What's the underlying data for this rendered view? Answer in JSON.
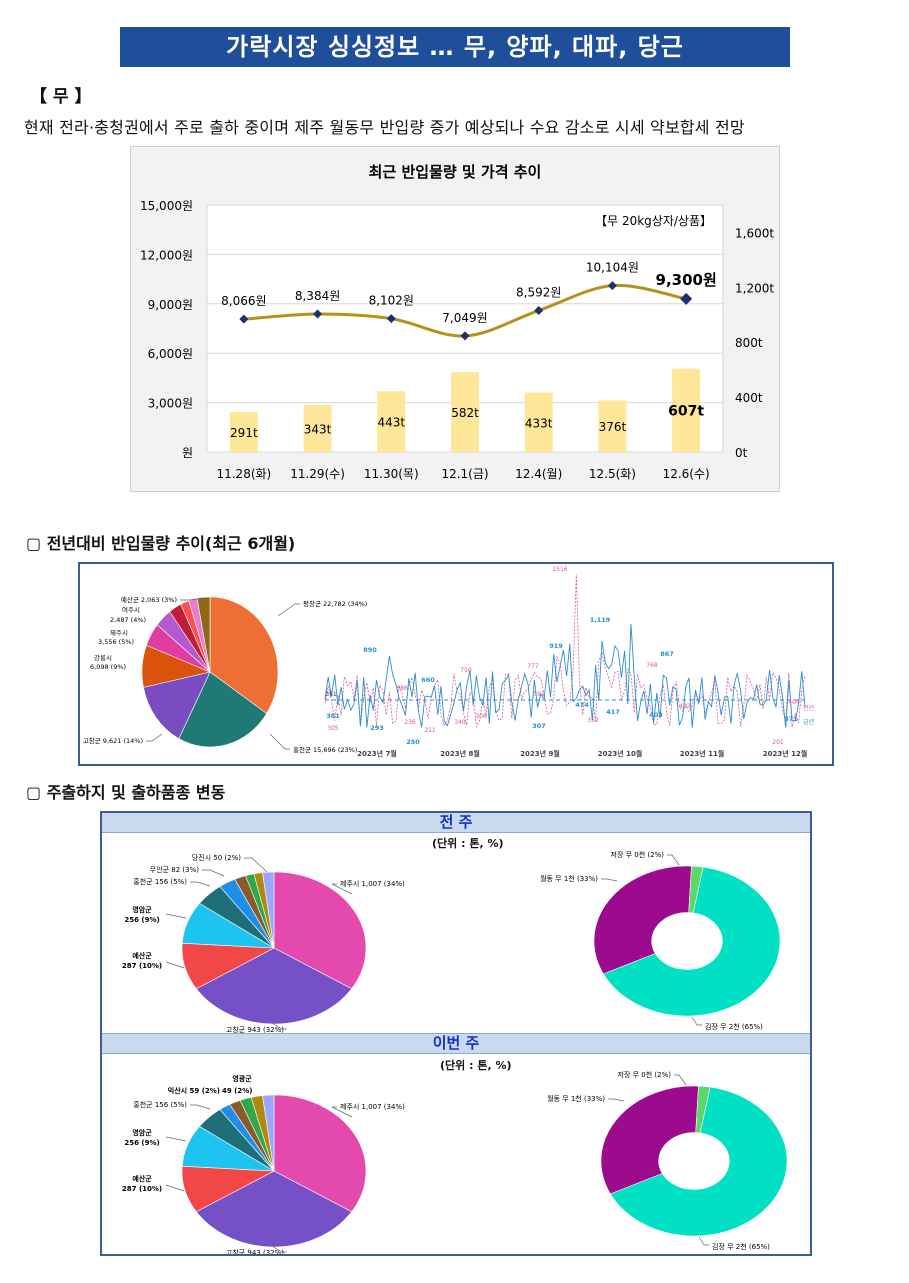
{
  "title": "가락시장 싱싱정보 … 무, 양파, 대파, 당근",
  "section": "【 무 】",
  "description": "현재 전라·충청권에서 주로 출하 중이며 제주 월동무 반입량 증가 예상되나 수요 감소로 시세 약보합세 전망",
  "chart_data": [
    {
      "type": "bar+line",
      "title": "최근 반입물량 및 가격 추이",
      "note": "【무 20kg상자/상품】",
      "categories": [
        "11.28(화)",
        "11.29(수)",
        "11.30(목)",
        "12.1(금)",
        "12.4(월)",
        "12.5(화)",
        "12.6(수)"
      ],
      "series": [
        {
          "values": [
            8066,
            8384,
            8102,
            7049,
            8592,
            10104,
            9300
          ],
          "labels": [
            "8,066원",
            "8,384원",
            "8,102원",
            "7,049원",
            "8,592원",
            "10,104원",
            "9,300원"
          ],
          "axis": "left"
        },
        {
          "values": [
            291,
            343,
            443,
            582,
            433,
            376,
            607
          ],
          "labels": [
            "291t",
            "343t",
            "443t",
            "582t",
            "433t",
            "376t",
            "607t"
          ],
          "axis": "right"
        }
      ],
      "left_ticks": [
        "15,000원",
        "12,000원",
        "9,000원",
        "6,000원",
        "3,000원",
        "원"
      ],
      "right_ticks": [
        "1,600t",
        "1,200t",
        "800t",
        "400t",
        "0t"
      ],
      "ylim_left": [
        0,
        15000
      ],
      "ylim_right": [
        0,
        1800
      ],
      "colors": {
        "line": "#b8901c",
        "marker": "#1c2f6e",
        "bar": "#ffe79a"
      }
    },
    {
      "type": "pie",
      "slices": [
        {
          "label": "평창군 22,782 (34%)",
          "value": 34,
          "color": "#ee6f35"
        },
        {
          "label": "홍천군 15,696 (23%)",
          "value": 23,
          "color": "#1f7a76"
        },
        {
          "label": "고창군 9,621 (14%)",
          "value": 14,
          "color": "#7a4bc1"
        },
        {
          "label": "강릉시 6,098 (9%)",
          "value": 9,
          "color": "#d9530d"
        },
        {
          "label": "제주시 3,556 (5%)",
          "value": 5,
          "color": "#e03da2"
        },
        {
          "label": "여주시 2,487 (4%)",
          "value": 4,
          "color": "#b35ad1"
        },
        {
          "label": "",
          "value": 3,
          "color": "#c01e36"
        },
        {
          "label": "",
          "value": 2,
          "color": "#ff5050"
        },
        {
          "label": "",
          "value": 2,
          "color": "#e97bd3"
        },
        {
          "label": "예산군 2,063 (3%)",
          "value": 3,
          "color": "#8b6914"
        }
      ]
    },
    {
      "type": "line",
      "x_ticks": [
        "2023년 7월",
        "2023년 8월",
        "2023년 9월",
        "2023년 10월",
        "2023년 11월",
        "2023년 12월"
      ],
      "series_names": [
        "전년",
        "금년"
      ],
      "current_labels": [
        "381",
        "890",
        "293",
        "250",
        "660",
        "307",
        "919",
        "1,119",
        "474",
        "417",
        "867",
        "403",
        "371"
      ],
      "previous_labels": [
        "351",
        "305",
        "586",
        "236",
        "211",
        "349",
        "750",
        "306",
        "777",
        "591",
        "1516",
        "352",
        "768",
        "493",
        "201",
        "404"
      ],
      "colors": {
        "current": "#2a8fd6",
        "previous": "#e0559a"
      }
    },
    {
      "type": "pie",
      "panel": "전 주",
      "unit": "(단위 : 톤, %)",
      "slices": [
        {
          "label": "제주시 1,007 (34%)",
          "value": 34,
          "color": "#e44aad"
        },
        {
          "label": "고창군 943 (32%)",
          "value": 32,
          "color": "#7650c6"
        },
        {
          "label": "예산군 287 (10%)",
          "value": 10,
          "color": "#f24747"
        },
        {
          "label": "영암군 256 (9%)",
          "value": 9,
          "color": "#1dc4f0"
        },
        {
          "label": "홍천군 156 (5%)",
          "value": 5,
          "color": "#1e6f7a"
        },
        {
          "label": "무안군 82 (3%)",
          "value": 3,
          "color": "#1f8ee8"
        },
        {
          "label": "",
          "value": 2,
          "color": "#8b5a2b"
        },
        {
          "label": "",
          "value": 1.5,
          "color": "#2ea84a"
        },
        {
          "label": "",
          "value": 1.5,
          "color": "#b08a10"
        },
        {
          "label": "당진시 50 (2%)",
          "value": 2,
          "color": "#9aa6ff"
        }
      ]
    },
    {
      "type": "pie",
      "donut": true,
      "panel": "전 주",
      "slices": [
        {
          "label": "김장 무 2천 (65%)",
          "value": 65,
          "color": "#00e0c4"
        },
        {
          "label": "월동 무 1천 (33%)",
          "value": 33,
          "color": "#9c0a8e"
        },
        {
          "label": "저장 무 0천 (2%)",
          "value": 2,
          "color": "#5ad86a"
        }
      ]
    },
    {
      "type": "pie",
      "panel": "이번 주",
      "unit": "(단위 : 톤, %)",
      "slices": [
        {
          "label": "제주시 1,007 (34%)",
          "value": 34,
          "color": "#e44aad"
        },
        {
          "label": "고창군 943 (32%)",
          "value": 32,
          "color": "#7650c6"
        },
        {
          "label": "예산군 287 (10%)",
          "value": 10,
          "color": "#f24747"
        },
        {
          "label": "영암군 256 (9%)",
          "value": 9,
          "color": "#1dc4f0"
        },
        {
          "label": "홍천군 156 (5%)",
          "value": 5,
          "color": "#1e6f7a"
        },
        {
          "label": "익산시 59 (2%)",
          "value": 2,
          "color": "#1f8ee8"
        },
        {
          "label": "49 (2%)",
          "value": 2,
          "color": "#8b5a2b"
        },
        {
          "label": "",
          "value": 2,
          "color": "#2ea84a"
        },
        {
          "label": "",
          "value": 2,
          "color": "#b08a10"
        },
        {
          "label": "영광군",
          "value": 2,
          "color": "#9aa6ff"
        }
      ]
    },
    {
      "type": "pie",
      "donut": true,
      "panel": "이번 주",
      "slices": [
        {
          "label": "김장 무 2천 (65%)",
          "value": 65,
          "color": "#00e0c4"
        },
        {
          "label": "월동 무 1천 (33%)",
          "value": 33,
          "color": "#9c0a8e"
        },
        {
          "label": "저장 무 0천 (2%)",
          "value": 2,
          "color": "#5ad86a"
        }
      ]
    }
  ],
  "subheads": {
    "yoy": "▢ 전년대비 반입물량 추이(최근 6개월)",
    "shipping": "▢ 주출하지 및 출하품종 변동"
  },
  "panels": {
    "prev_week": "전 주",
    "this_week": "이번 주",
    "unit": "(단위 : 톤, %)"
  }
}
